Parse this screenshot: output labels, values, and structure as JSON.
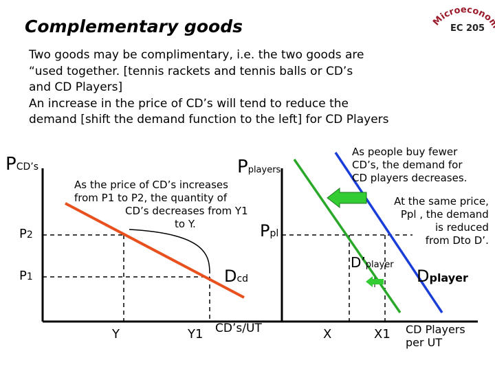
{
  "title": "Complementary goods",
  "logo": {
    "arc_text": "Microeconomics",
    "course": "EC 205"
  },
  "intro_lines": [
    "Two goods may be complimentary, i.e. the two goods are",
    "“used together. [tennis rackets and tennis balls or CD’s",
    "and CD Players]",
    "An increase in the price of CD’s will tend to reduce the",
    "demand [shift the demand function to the left] for CD Players"
  ],
  "left_graph": {
    "y_axis_label_main": "P",
    "y_axis_label_sub": "CD’s",
    "p2_label_main": "P",
    "p2_label_sub": "2",
    "p1_label_main": "P",
    "p1_label_sub": "1",
    "y_label": "Y",
    "y1_label": "Y1",
    "x_axis_label": "CD’s/UT",
    "demand_label_main": "D",
    "demand_label_sub": "cd",
    "annotation_lines": [
      "As the price of CD’s increases",
      "from P1 to P2, the quantity of",
      "CD’s decreases from Y1",
      "to Y."
    ]
  },
  "right_graph": {
    "y_axis_label_main": "P",
    "y_axis_label_sub": "players",
    "price_label_main": "P",
    "price_label_sub": "pl",
    "x_label": "X",
    "x1_label": "X1",
    "x_axis_label_lines": [
      "CD Players",
      "per UT"
    ],
    "new_demand_label_main": "D’",
    "new_demand_label_sub": "player",
    "old_demand_label_main": "D",
    "old_demand_label_sub": "player",
    "note_top_lines": [
      "As people buy fewer",
      "CD’s, the demand for",
      "CD players decreases."
    ],
    "note_bottom_lines": [
      "At the same price,",
      "Ppl , the demand",
      "is reduced",
      "from Dto D’."
    ]
  },
  "colors": {
    "demand_cd": "#e8501e",
    "demand_player_old": "#1a3fd8",
    "demand_player_new": "#2aa82a",
    "arrow_fill": "#33cc33",
    "axis": "#000000",
    "logo": "#9a1a2a"
  }
}
